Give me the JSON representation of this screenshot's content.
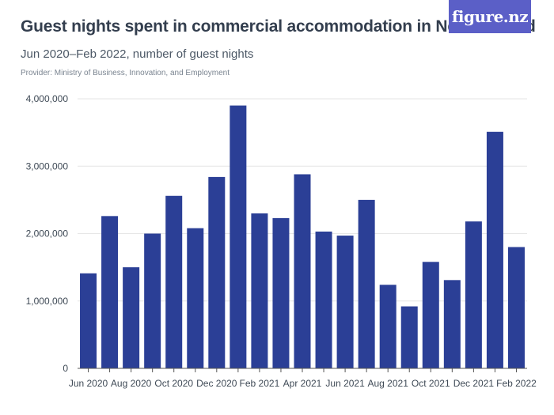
{
  "title": "Guest nights spent in commercial accommodation in New Zealand",
  "subtitle": "Jun 2020–Feb 2022, number of guest nights",
  "provider": "Provider: Ministry of Business, Innovation, and Employment",
  "logo_text": "figure.nz",
  "colors": {
    "bar": "#2b3f96",
    "logo_bg": "#5b5fc7",
    "grid": "#e6e6e6"
  },
  "chart_data": {
    "type": "bar",
    "categories": [
      "Jun 2020",
      "Jul 2020",
      "Aug 2020",
      "Sep 2020",
      "Oct 2020",
      "Nov 2020",
      "Dec 2020",
      "Jan 2021",
      "Feb 2021",
      "Mar 2021",
      "Apr 2021",
      "May 2021",
      "Jun 2021",
      "Jul 2021",
      "Aug 2021",
      "Sep 2021",
      "Oct 2021",
      "Nov 2021",
      "Dec 2021",
      "Jan 2022",
      "Feb 2022"
    ],
    "x_tick_labels": [
      "Jun 2020",
      "Aug 2020",
      "Oct 2020",
      "Dec 2020",
      "Feb 2021",
      "Apr 2021",
      "Jun 2021",
      "Aug 2021",
      "Oct 2021",
      "Dec 2021",
      "Feb 2022"
    ],
    "values": [
      1410000,
      2260000,
      1500000,
      2000000,
      2560000,
      2080000,
      2840000,
      3900000,
      2300000,
      2230000,
      2880000,
      2030000,
      1970000,
      2500000,
      1240000,
      920000,
      1580000,
      1310000,
      2180000,
      3510000,
      1800000
    ],
    "y_ticks": [
      0,
      1000000,
      2000000,
      3000000,
      4000000
    ],
    "y_tick_labels": [
      "0",
      "1,000,000",
      "2,000,000",
      "3,000,000",
      "4,000,000"
    ],
    "ylim": [
      0,
      4000000
    ],
    "grid": true,
    "xlabel": "",
    "ylabel": ""
  }
}
